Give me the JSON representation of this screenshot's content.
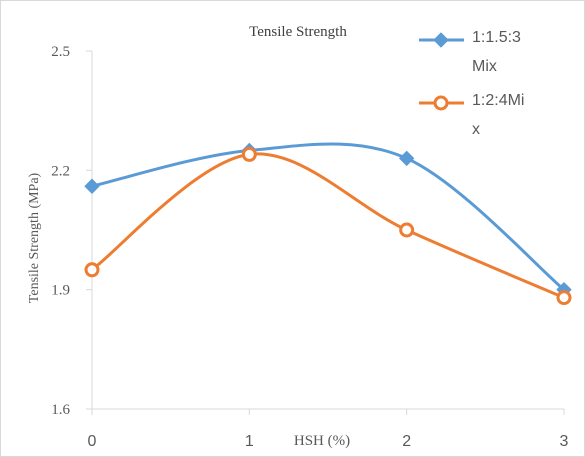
{
  "chart_data": {
    "type": "line",
    "title": "Tensile Strength",
    "xlabel": "HSH (%)",
    "ylabel": "Tensile Strength (MPa)",
    "x": [
      0,
      1,
      2,
      3
    ],
    "x_tick_labels": [
      "0",
      "1",
      "2",
      "3"
    ],
    "y_tick_labels": [
      "2.5",
      "2.2",
      "1.9",
      "1.6"
    ],
    "y_ticks": [
      2.5,
      2.2,
      1.9,
      1.6
    ],
    "xlim": [
      0,
      3
    ],
    "ylim": [
      1.6,
      2.5
    ],
    "grid": false,
    "smooth": true,
    "legend_position": "top-right",
    "series": [
      {
        "name": "1:1.5:3 Mix",
        "name_lines": [
          "1:1.5:3",
          "Mix"
        ],
        "values": [
          2.16,
          2.25,
          2.23,
          1.9
        ],
        "color": "#5b9bd5",
        "marker": "diamond"
      },
      {
        "name": "1:2:4Mix",
        "name_lines": [
          "1:2:4Mi",
          "x"
        ],
        "values": [
          1.95,
          2.24,
          2.05,
          1.88
        ],
        "color": "#ed7d31",
        "marker": "circle"
      }
    ]
  },
  "colors": {
    "axis": "#d9d9d9",
    "text": "#595959",
    "title": "#404040"
  }
}
